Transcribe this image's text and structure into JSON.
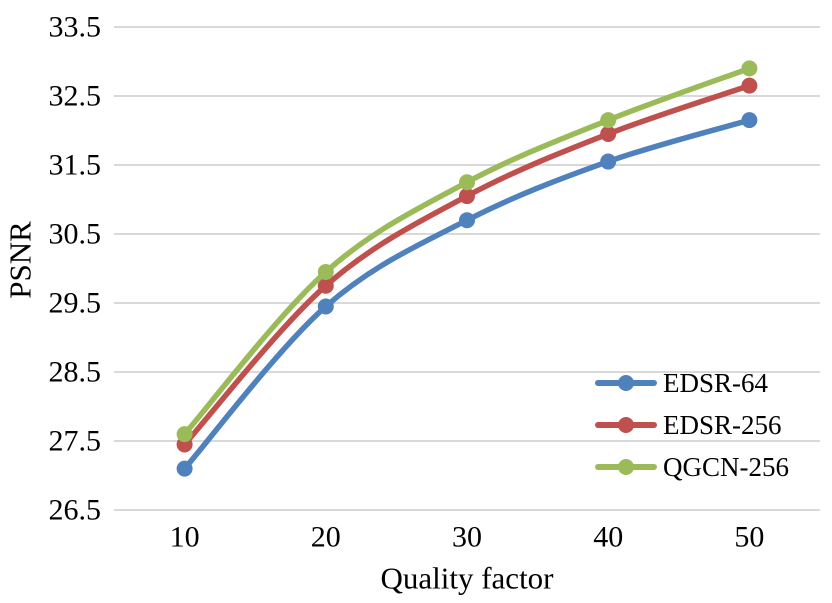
{
  "chart_data": {
    "type": "line",
    "title": "",
    "xlabel": "Quality factor",
    "ylabel": "PSNR",
    "x": [
      10,
      20,
      30,
      40,
      50
    ],
    "series": [
      {
        "name": "EDSR-64",
        "color": "#4F81BD",
        "values": [
          27.1,
          29.45,
          30.7,
          31.55,
          32.15
        ]
      },
      {
        "name": "EDSR-256",
        "color": "#C0504D",
        "values": [
          27.45,
          29.75,
          31.05,
          31.95,
          32.65
        ]
      },
      {
        "name": "QGCN-256",
        "color": "#9BBB59",
        "values": [
          27.6,
          29.95,
          31.25,
          32.15,
          32.9
        ]
      }
    ],
    "ylim": [
      26.5,
      33.5
    ],
    "ytick_step": 1.0,
    "ytick_format_decimals": 1,
    "grid": "horizontal",
    "legend_position": "inside-right",
    "gridline_color": "#D9D9D9",
    "text_color": "#000000",
    "marker": "circle",
    "line_style": "smooth"
  }
}
